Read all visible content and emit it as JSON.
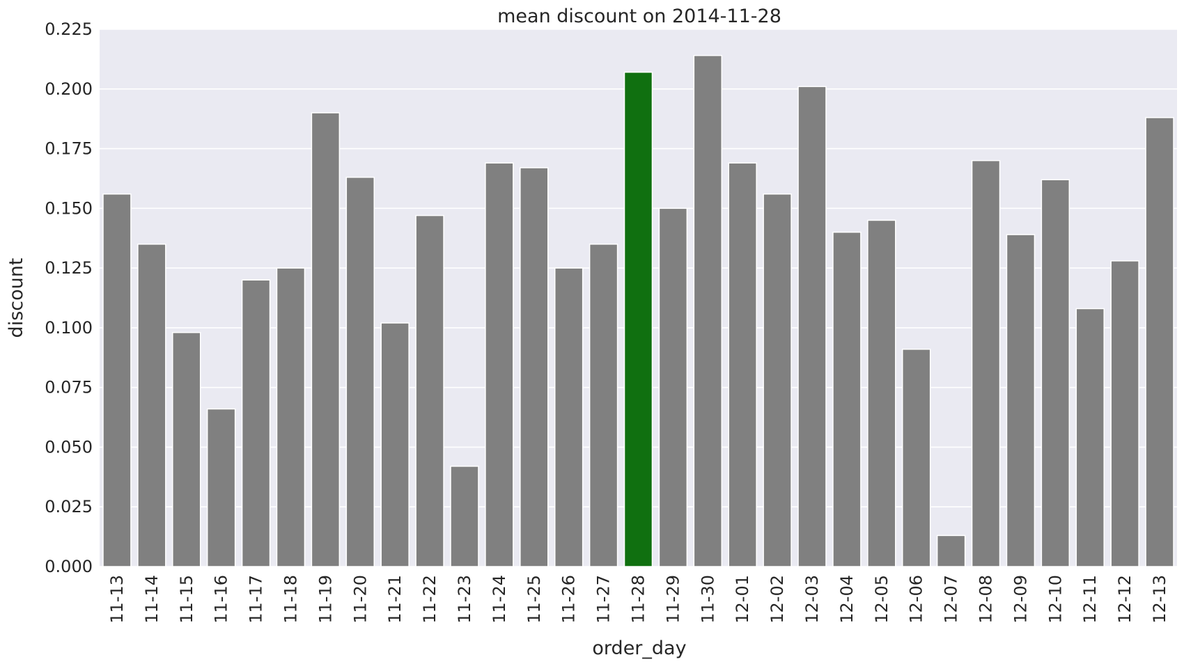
{
  "chart_data": {
    "type": "bar",
    "title": "mean discount on 2014-11-28",
    "xlabel": "order_day",
    "ylabel": "discount",
    "ylim": [
      0,
      0.225
    ],
    "yticks": [
      "0.000",
      "0.025",
      "0.050",
      "0.075",
      "0.100",
      "0.125",
      "0.150",
      "0.175",
      "0.200",
      "0.225"
    ],
    "grid": true,
    "categories": [
      "11-13",
      "11-14",
      "11-15",
      "11-16",
      "11-17",
      "11-18",
      "11-19",
      "11-20",
      "11-21",
      "11-22",
      "11-23",
      "11-24",
      "11-25",
      "11-26",
      "11-27",
      "11-28",
      "11-29",
      "11-30",
      "12-01",
      "12-02",
      "12-03",
      "12-04",
      "12-05",
      "12-06",
      "12-07",
      "12-08",
      "12-09",
      "12-10",
      "12-11",
      "12-12",
      "12-13"
    ],
    "values": [
      0.156,
      0.135,
      0.098,
      0.066,
      0.12,
      0.125,
      0.19,
      0.163,
      0.102,
      0.147,
      0.042,
      0.169,
      0.167,
      0.125,
      0.135,
      0.207,
      0.15,
      0.214,
      0.169,
      0.156,
      0.201,
      0.14,
      0.145,
      0.091,
      0.013,
      0.17,
      0.139,
      0.162,
      0.108,
      0.128,
      0.188
    ],
    "highlight_category": "11-28",
    "colors": {
      "bar": "#808080",
      "highlight": "#107010",
      "plot_background": "#eaeaf2",
      "grid": "#ffffff",
      "bar_edge": "#ffffff"
    }
  }
}
